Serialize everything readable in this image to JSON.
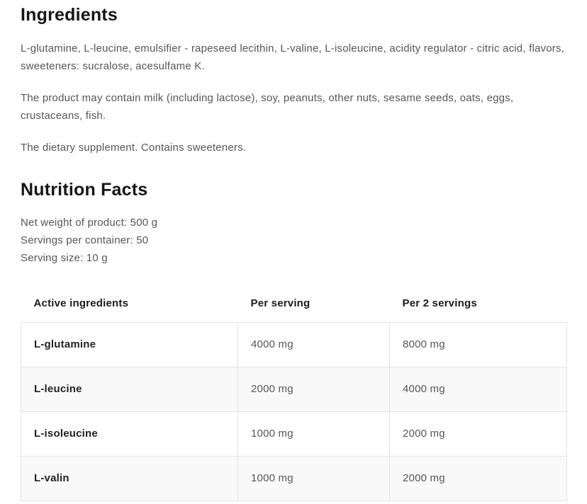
{
  "ingredients": {
    "heading": "Ingredients",
    "composition": "L-glutamine, L-leucine, emulsifier - rapeseed lecithin, L-valine, L-isoleucine, acidity regulator - citric acid, flavors, sweeteners: sucralose, acesulfame K.",
    "allergen_notice": "The product may contain milk (including lactose), soy, peanuts, other nuts, sesame seeds, oats, eggs, crustaceans, fish.",
    "note": "The dietary supplement. Contains sweeteners."
  },
  "nutrition": {
    "heading": "Nutrition Facts",
    "details": {
      "net_weight": "Net weight of product: 500 g",
      "servings_per_container": "Servings per container: 50",
      "serving_size": "Serving size: 10 g"
    },
    "table": {
      "columns": [
        "Active ingredients",
        "Per serving",
        "Per 2 servings"
      ],
      "rows": [
        {
          "name": "L-glutamine",
          "per_serving": "4000 mg",
          "per_2_servings": "8000 mg"
        },
        {
          "name": "L-leucine",
          "per_serving": "2000 mg",
          "per_2_servings": "4000 mg"
        },
        {
          "name": "L-isoleucine",
          "per_serving": "1000 mg",
          "per_2_servings": "2000 mg"
        },
        {
          "name": "L-valin",
          "per_serving": "1000 mg",
          "per_2_servings": "2000 mg"
        }
      ]
    }
  },
  "colors": {
    "heading_text": "#161616",
    "body_text": "#565656",
    "table_header_text": "#1b1b1b",
    "table_name_text": "#222222",
    "table_border": "#e3e3e3",
    "row_stripe": "#f9f9f9",
    "background": "#ffffff"
  }
}
